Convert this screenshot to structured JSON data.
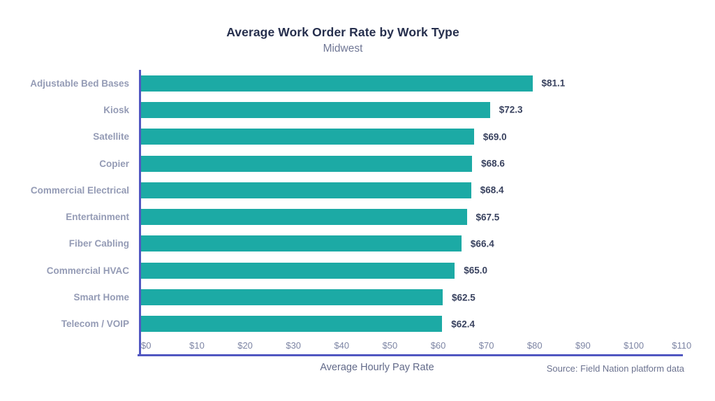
{
  "chart_data": {
    "type": "bar",
    "orientation": "horizontal",
    "title": "Average Work Order Rate by Work Type",
    "subtitle": "Midwest",
    "categories": [
      "Adjustable Bed Bases",
      "Kiosk",
      "Satellite",
      "Copier",
      "Commercial Electrical",
      "Entertainment",
      "Fiber Cabling",
      "Commercial HVAC",
      "Smart Home",
      "Telecom / VOIP"
    ],
    "values": [
      81.1,
      72.3,
      69.0,
      68.6,
      68.4,
      67.5,
      66.4,
      65.0,
      62.5,
      62.4
    ],
    "value_labels": [
      "$81.1",
      "$72.3",
      "$69.0",
      "$68.6",
      "$68.4",
      "$67.5",
      "$66.4",
      "$65.0",
      "$62.5",
      "$62.4"
    ],
    "xlabel": "Average Hourly Pay Rate",
    "x_tick_values": [
      0,
      10,
      20,
      30,
      40,
      50,
      60,
      70,
      80,
      90,
      100,
      110
    ],
    "x_tick_labels": [
      "$0",
      "$10",
      "$20",
      "$30",
      "$40",
      "$50",
      "$60",
      "$70",
      "$80",
      "$90",
      "$100",
      "$110"
    ],
    "xlim": [
      0,
      113
    ],
    "grid": false,
    "legend": "none",
    "bar_color": "#1caaa5",
    "axis_color": "#5157c1"
  },
  "footer": {
    "source": "Source: Field Nation platform data"
  }
}
